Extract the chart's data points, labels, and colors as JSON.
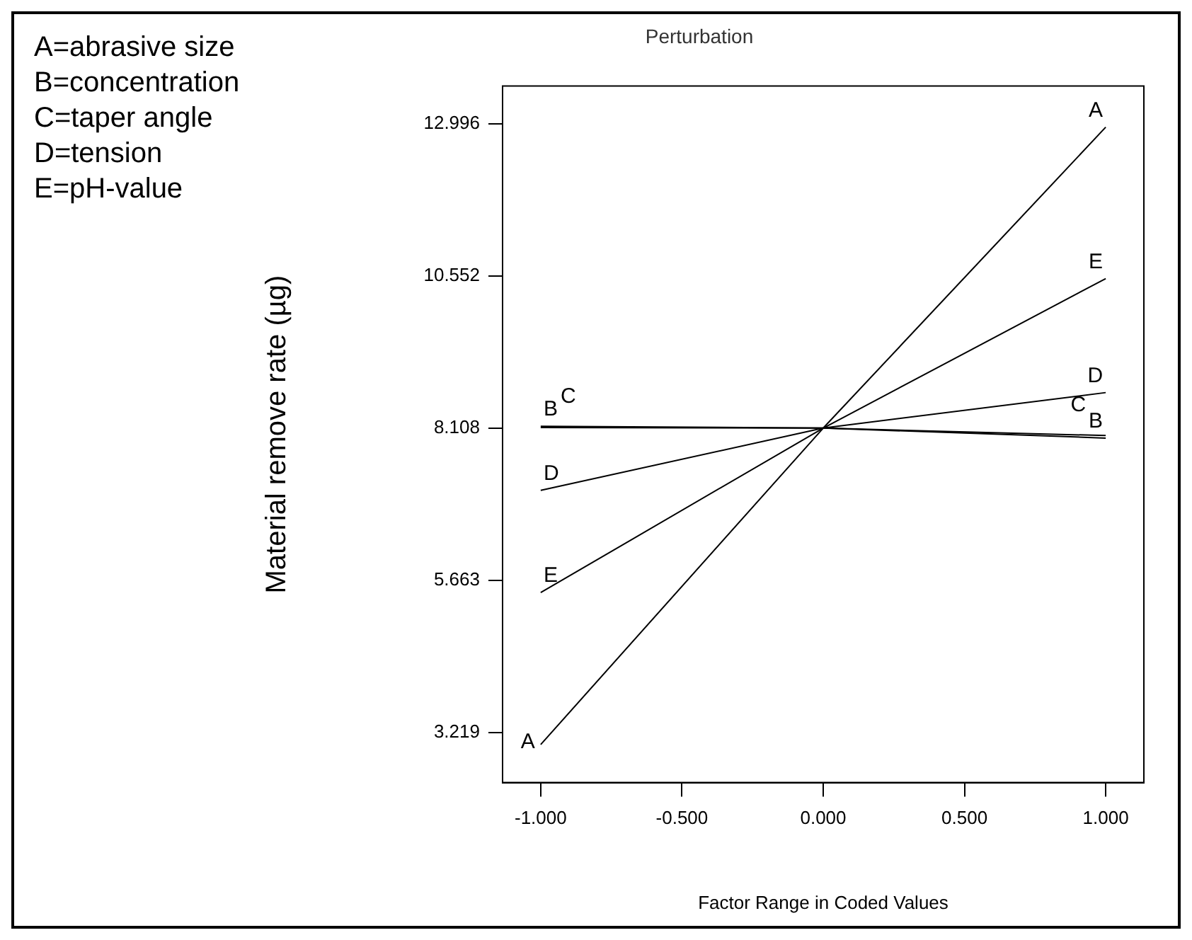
{
  "chart_data": {
    "type": "line",
    "title": "Perturbation",
    "xlabel": "Factor Range in Coded Values",
    "ylabel": "Material remove rate (µg)",
    "annotations": [
      "A=abrasive size",
      "B=concentration",
      "C=taper angle",
      "D=tension",
      "E=pH-value"
    ],
    "x": [
      -1,
      0,
      1
    ],
    "series": [
      {
        "name": "A",
        "color": "#000000",
        "values": [
          3.03,
          8.11,
          12.94
        ]
      },
      {
        "name": "B",
        "color": "#000000",
        "values": [
          8.14,
          8.11,
          7.95
        ]
      },
      {
        "name": "C",
        "color": "#000000",
        "values": [
          8.12,
          8.11,
          7.99
        ]
      },
      {
        "name": "D",
        "color": "#000000",
        "values": [
          7.11,
          8.11,
          8.68
        ]
      },
      {
        "name": "E",
        "color": "#000000",
        "values": [
          5.47,
          8.11,
          10.51
        ]
      }
    ],
    "xlim": [
      -1.135,
      1.135
    ],
    "xticks": [
      {
        "value": -1,
        "label": "-1.000"
      },
      {
        "value": -0.5,
        "label": "-0.500"
      },
      {
        "value": 0,
        "label": "0.000"
      },
      {
        "value": 0.5,
        "label": "0.500"
      },
      {
        "value": 1,
        "label": "1.000"
      }
    ],
    "ylim": [
      2.42,
      13.6
    ],
    "yticks": [
      3.219,
      5.663,
      8.108,
      10.552,
      12.996
    ],
    "grid": false,
    "legend": false,
    "marker": "none",
    "line_style": "solid"
  }
}
